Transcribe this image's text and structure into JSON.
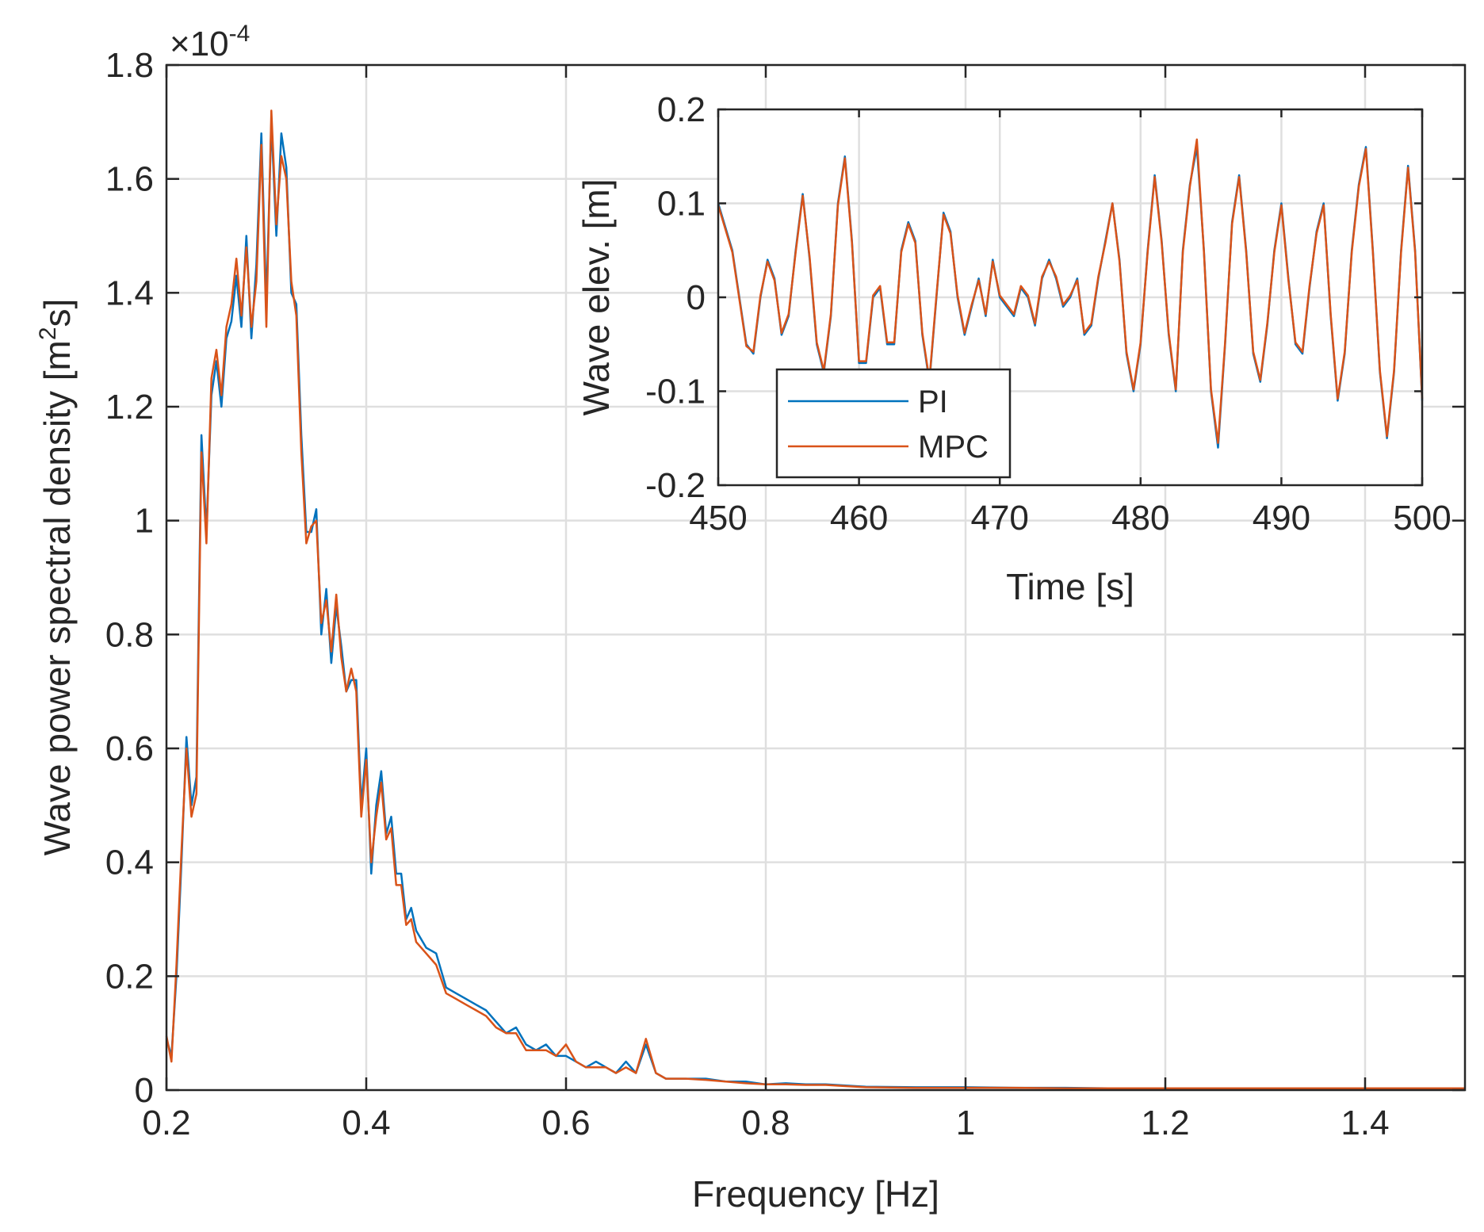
{
  "chart_data": [
    {
      "type": "line",
      "name": "main-spectrum",
      "xlabel": "Frequency [Hz]",
      "ylabel_prefix": "Wave power spectral density [m",
      "ylabel_sup": "2",
      "ylabel_suffix": "s]",
      "exponent_label": "×10",
      "exponent_value": "-4",
      "xlim": [
        0.2,
        1.5
      ],
      "ylim": [
        0,
        1.8
      ],
      "y_scale": 0.0001,
      "grid": true,
      "xticks": [
        0.2,
        0.4,
        0.6,
        0.8,
        1,
        1.2,
        1.4
      ],
      "xtick_labels": [
        "0.2",
        "0.4",
        "0.6",
        "0.8",
        "1",
        "1.2",
        "1.4"
      ],
      "yticks": [
        0,
        0.2,
        0.4,
        0.6,
        0.8,
        1,
        1.2,
        1.4,
        1.6,
        1.8
      ],
      "ytick_labels": [
        "0",
        "0.2",
        "0.4",
        "0.6",
        "0.8",
        "1",
        "1.2",
        "1.4",
        "1.6",
        "1.8"
      ],
      "series": [
        {
          "name": "PI",
          "color": "#0072BD",
          "x": [
            0.2,
            0.205,
            0.21,
            0.215,
            0.22,
            0.225,
            0.23,
            0.235,
            0.24,
            0.245,
            0.25,
            0.255,
            0.26,
            0.265,
            0.27,
            0.275,
            0.28,
            0.285,
            0.29,
            0.295,
            0.3,
            0.305,
            0.31,
            0.315,
            0.32,
            0.325,
            0.33,
            0.335,
            0.34,
            0.345,
            0.35,
            0.355,
            0.36,
            0.365,
            0.37,
            0.375,
            0.38,
            0.385,
            0.39,
            0.395,
            0.4,
            0.405,
            0.41,
            0.415,
            0.42,
            0.425,
            0.43,
            0.435,
            0.44,
            0.445,
            0.45,
            0.46,
            0.47,
            0.48,
            0.49,
            0.5,
            0.51,
            0.52,
            0.53,
            0.54,
            0.55,
            0.56,
            0.57,
            0.58,
            0.59,
            0.6,
            0.61,
            0.62,
            0.63,
            0.64,
            0.65,
            0.66,
            0.67,
            0.68,
            0.69,
            0.7,
            0.72,
            0.74,
            0.76,
            0.78,
            0.8,
            0.82,
            0.84,
            0.86,
            0.88,
            0.9,
            0.95,
            1.0,
            1.05,
            1.1,
            1.15,
            1.2,
            1.25,
            1.3,
            1.35,
            1.4,
            1.45,
            1.5
          ],
          "y": [
            0.09,
            0.06,
            0.2,
            0.4,
            0.62,
            0.5,
            0.55,
            1.15,
            0.98,
            1.22,
            1.28,
            1.2,
            1.32,
            1.35,
            1.43,
            1.34,
            1.5,
            1.32,
            1.45,
            1.68,
            1.38,
            1.7,
            1.5,
            1.68,
            1.62,
            1.4,
            1.38,
            1.15,
            0.98,
            0.98,
            1.02,
            0.8,
            0.88,
            0.75,
            0.85,
            0.78,
            0.7,
            0.72,
            0.72,
            0.5,
            0.6,
            0.38,
            0.5,
            0.56,
            0.45,
            0.48,
            0.38,
            0.38,
            0.3,
            0.32,
            0.28,
            0.25,
            0.24,
            0.18,
            0.17,
            0.16,
            0.15,
            0.14,
            0.12,
            0.1,
            0.11,
            0.08,
            0.07,
            0.08,
            0.06,
            0.06,
            0.05,
            0.04,
            0.05,
            0.04,
            0.03,
            0.05,
            0.03,
            0.08,
            0.03,
            0.02,
            0.02,
            0.02,
            0.015,
            0.015,
            0.01,
            0.012,
            0.01,
            0.01,
            0.008,
            0.006,
            0.005,
            0.005,
            0.004,
            0.004,
            0.003,
            0.003,
            0.003,
            0.003,
            0.003,
            0.003,
            0.003,
            0.003
          ]
        },
        {
          "name": "MPC",
          "color": "#D95319",
          "x": [
            0.2,
            0.205,
            0.21,
            0.215,
            0.22,
            0.225,
            0.23,
            0.235,
            0.24,
            0.245,
            0.25,
            0.255,
            0.26,
            0.265,
            0.27,
            0.275,
            0.28,
            0.285,
            0.29,
            0.295,
            0.3,
            0.305,
            0.31,
            0.315,
            0.32,
            0.325,
            0.33,
            0.335,
            0.34,
            0.345,
            0.35,
            0.355,
            0.36,
            0.365,
            0.37,
            0.375,
            0.38,
            0.385,
            0.39,
            0.395,
            0.4,
            0.405,
            0.41,
            0.415,
            0.42,
            0.425,
            0.43,
            0.435,
            0.44,
            0.445,
            0.45,
            0.46,
            0.47,
            0.48,
            0.49,
            0.5,
            0.51,
            0.52,
            0.53,
            0.54,
            0.55,
            0.56,
            0.57,
            0.58,
            0.59,
            0.6,
            0.61,
            0.62,
            0.63,
            0.64,
            0.65,
            0.66,
            0.67,
            0.68,
            0.69,
            0.7,
            0.72,
            0.74,
            0.76,
            0.78,
            0.8,
            0.82,
            0.84,
            0.86,
            0.88,
            0.9,
            0.95,
            1.0,
            1.05,
            1.1,
            1.15,
            1.2,
            1.25,
            1.3,
            1.35,
            1.4,
            1.45,
            1.5
          ],
          "y": [
            0.095,
            0.05,
            0.22,
            0.42,
            0.6,
            0.48,
            0.52,
            1.12,
            0.96,
            1.25,
            1.3,
            1.22,
            1.34,
            1.38,
            1.46,
            1.36,
            1.48,
            1.34,
            1.42,
            1.66,
            1.34,
            1.72,
            1.52,
            1.64,
            1.6,
            1.42,
            1.36,
            1.12,
            0.96,
            0.99,
            1.0,
            0.82,
            0.86,
            0.77,
            0.87,
            0.76,
            0.7,
            0.74,
            0.7,
            0.48,
            0.58,
            0.4,
            0.48,
            0.54,
            0.44,
            0.46,
            0.36,
            0.36,
            0.29,
            0.3,
            0.26,
            0.24,
            0.22,
            0.17,
            0.16,
            0.15,
            0.14,
            0.13,
            0.11,
            0.1,
            0.1,
            0.07,
            0.07,
            0.07,
            0.06,
            0.08,
            0.05,
            0.04,
            0.04,
            0.04,
            0.03,
            0.04,
            0.03,
            0.09,
            0.03,
            0.02,
            0.02,
            0.018,
            0.015,
            0.012,
            0.01,
            0.01,
            0.009,
            0.009,
            0.007,
            0.005,
            0.004,
            0.004,
            0.004,
            0.003,
            0.003,
            0.003,
            0.003,
            0.003,
            0.003,
            0.003,
            0.003,
            0.003
          ]
        }
      ]
    },
    {
      "type": "line",
      "name": "inset-wave-elevation",
      "xlabel": "Time [s]",
      "ylabel": "Wave elev. [m]",
      "xlim": [
        450,
        500
      ],
      "ylim": [
        -0.2,
        0.2
      ],
      "grid": true,
      "xticks": [
        450,
        460,
        470,
        480,
        490,
        500
      ],
      "xtick_labels": [
        "450",
        "460",
        "470",
        "480",
        "490",
        "500"
      ],
      "yticks": [
        -0.2,
        -0.1,
        0,
        0.1,
        0.2
      ],
      "ytick_labels": [
        "-0.2",
        "-0.1",
        "0",
        "0.1",
        "0.2"
      ],
      "legend_position": "bottom-left",
      "series": [
        {
          "name": "PI",
          "color": "#0072BD",
          "x": [
            450,
            451,
            452,
            452.5,
            453,
            453.5,
            454,
            454.5,
            455,
            455.5,
            456,
            456.5,
            457,
            457.5,
            458,
            458.5,
            459,
            459.5,
            460,
            460.5,
            461,
            461.5,
            462,
            462.5,
            463,
            463.5,
            464,
            464.5,
            465,
            465.5,
            466,
            466.5,
            467,
            467.5,
            468,
            468.5,
            469,
            469.5,
            470,
            470.5,
            471,
            471.5,
            472,
            472.5,
            473,
            473.5,
            474,
            474.5,
            475,
            475.5,
            476,
            476.5,
            477,
            477.5,
            478,
            478.5,
            479,
            479.5,
            480,
            480.5,
            481,
            481.5,
            482,
            482.5,
            483,
            483.5,
            484,
            484.5,
            485,
            485.5,
            486,
            486.5,
            487,
            487.5,
            488,
            488.5,
            489,
            489.5,
            490,
            490.5,
            491,
            491.5,
            492,
            492.5,
            493,
            493.5,
            494,
            494.5,
            495,
            495.5,
            496,
            496.5,
            497,
            497.5,
            498,
            498.5,
            499,
            499.5,
            500
          ],
          "y": [
            0.1,
            0.05,
            -0.05,
            -0.06,
            0.0,
            0.04,
            0.02,
            -0.04,
            -0.02,
            0.05,
            0.11,
            0.04,
            -0.05,
            -0.08,
            -0.02,
            0.1,
            0.15,
            0.06,
            -0.07,
            -0.07,
            0.0,
            0.01,
            -0.05,
            -0.05,
            0.05,
            0.08,
            0.06,
            -0.04,
            -0.09,
            0.0,
            0.09,
            0.07,
            0.0,
            -0.04,
            -0.01,
            0.02,
            -0.02,
            0.04,
            0.0,
            -0.01,
            -0.02,
            0.01,
            0.0,
            -0.03,
            0.02,
            0.04,
            0.02,
            -0.01,
            0.0,
            0.02,
            -0.04,
            -0.03,
            0.02,
            0.06,
            0.1,
            0.04,
            -0.06,
            -0.1,
            -0.05,
            0.05,
            0.13,
            0.06,
            -0.04,
            -0.1,
            0.05,
            0.12,
            0.16,
            0.05,
            -0.1,
            -0.16,
            -0.05,
            0.08,
            0.13,
            0.05,
            -0.06,
            -0.09,
            -0.03,
            0.05,
            0.1,
            0.02,
            -0.05,
            -0.06,
            0.01,
            0.07,
            0.1,
            -0.02,
            -0.11,
            -0.06,
            0.05,
            0.12,
            0.16,
            0.05,
            -0.08,
            -0.15,
            -0.08,
            0.05,
            0.14,
            0.05,
            -0.11
          ]
        },
        {
          "name": "MPC",
          "color": "#D95319",
          "x": [
            450,
            451,
            452,
            452.5,
            453,
            453.5,
            454,
            454.5,
            455,
            455.5,
            456,
            456.5,
            457,
            457.5,
            458,
            458.5,
            459,
            459.5,
            460,
            460.5,
            461,
            461.5,
            462,
            462.5,
            463,
            463.5,
            464,
            464.5,
            465,
            465.5,
            466,
            466.5,
            467,
            467.5,
            468,
            468.5,
            469,
            469.5,
            470,
            470.5,
            471,
            471.5,
            472,
            472.5,
            473,
            473.5,
            474,
            474.5,
            475,
            475.5,
            476,
            476.5,
            477,
            477.5,
            478,
            478.5,
            479,
            479.5,
            480,
            480.5,
            481,
            481.5,
            482,
            482.5,
            483,
            483.5,
            484,
            484.5,
            485,
            485.5,
            486,
            486.5,
            487,
            487.5,
            488,
            488.5,
            489,
            489.5,
            490,
            490.5,
            491,
            491.5,
            492,
            492.5,
            493,
            493.5,
            494,
            494.5,
            495,
            495.5,
            496,
            496.5,
            497,
            497.5,
            498,
            498.5,
            499,
            499.5,
            500
          ],
          "y": [
            0.098,
            0.048,
            -0.052,
            -0.058,
            0.002,
            0.038,
            0.018,
            -0.038,
            -0.018,
            0.048,
            0.108,
            0.042,
            -0.048,
            -0.078,
            -0.018,
            0.098,
            0.148,
            0.058,
            -0.068,
            -0.068,
            0.002,
            0.012,
            -0.048,
            -0.048,
            0.048,
            0.078,
            0.058,
            -0.038,
            -0.088,
            0.002,
            0.088,
            0.068,
            0.002,
            -0.038,
            -0.008,
            0.018,
            -0.018,
            0.038,
            0.002,
            -0.008,
            -0.018,
            0.012,
            0.002,
            -0.028,
            0.022,
            0.038,
            0.022,
            -0.008,
            0.002,
            0.018,
            -0.038,
            -0.028,
            0.022,
            0.058,
            0.1,
            0.038,
            -0.058,
            -0.098,
            -0.048,
            0.048,
            0.128,
            0.058,
            -0.038,
            -0.098,
            0.048,
            0.118,
            0.168,
            0.048,
            -0.098,
            -0.155,
            -0.048,
            0.078,
            0.128,
            0.048,
            -0.058,
            -0.088,
            -0.028,
            0.048,
            0.098,
            0.018,
            -0.048,
            -0.058,
            0.012,
            0.068,
            0.098,
            -0.018,
            -0.108,
            -0.058,
            0.048,
            0.118,
            0.158,
            0.048,
            -0.078,
            -0.148,
            -0.078,
            0.048,
            0.138,
            0.048,
            -0.108
          ]
        }
      ]
    }
  ]
}
